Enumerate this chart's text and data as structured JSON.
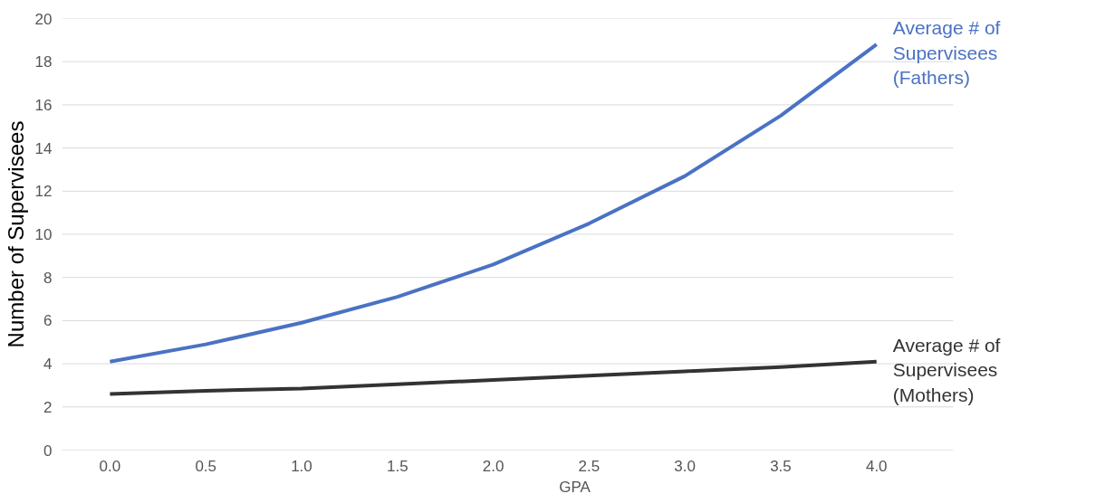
{
  "chart_data": {
    "type": "line",
    "xlabel": "GPA",
    "ylabel": "Number of Supervisees",
    "categories": [
      "0.0",
      "0.5",
      "1.0",
      "1.5",
      "2.0",
      "2.5",
      "3.0",
      "3.5",
      "4.0"
    ],
    "series": [
      {
        "name": "Average # of Supervisees (Fathers)",
        "color": "#4a72c4",
        "values": [
          4.1,
          4.9,
          5.9,
          7.1,
          8.6,
          10.5,
          12.7,
          15.5,
          18.8
        ]
      },
      {
        "name": "Average # of Supervisees (Mothers)",
        "color": "#333333",
        "values": [
          2.6,
          2.75,
          2.85,
          3.05,
          3.25,
          3.45,
          3.65,
          3.85,
          4.1
        ]
      }
    ],
    "ylim": [
      0,
      20
    ],
    "yticks": [
      0,
      2,
      4,
      6,
      8,
      10,
      12,
      14,
      16,
      18,
      20
    ],
    "grid": "y",
    "legend": false,
    "marker": "none",
    "line_style": "solid"
  }
}
